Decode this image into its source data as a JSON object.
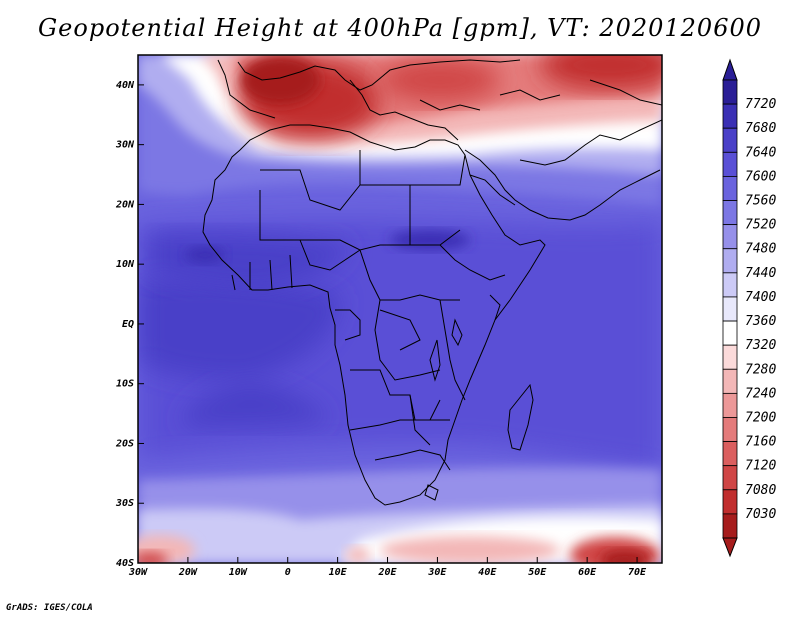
{
  "title": "Geopotential Height at 400hPa [gpm], VT: 2020120600",
  "credit": "GrADS: IGES/COLA",
  "map": {
    "lon_range": [
      -30,
      75
    ],
    "lat_range": [
      -40,
      45
    ],
    "lat_labels": [
      "40N",
      "30N",
      "20N",
      "10N",
      "EQ",
      "10S",
      "20S",
      "30S",
      "40S"
    ],
    "lat_values": [
      40,
      30,
      20,
      10,
      0,
      -10,
      -20,
      -30,
      -40
    ],
    "lon_labels": [
      "30W",
      "20W",
      "10W",
      "0",
      "10E",
      "20E",
      "30E",
      "40E",
      "50E",
      "60E",
      "70E"
    ],
    "lon_values": [
      -30,
      -20,
      -10,
      0,
      10,
      20,
      30,
      40,
      50,
      60,
      70
    ]
  },
  "colorbar": {
    "labels": [
      "7720",
      "7680",
      "7640",
      "7600",
      "7560",
      "7520",
      "7480",
      "7440",
      "7400",
      "7360",
      "7320",
      "7280",
      "7240",
      "7200",
      "7160",
      "7120",
      "7080",
      "7030"
    ],
    "colors": [
      "#2a1e96",
      "#3a2fb4",
      "#4a40c8",
      "#5a50d6",
      "#6a63de",
      "#7c77e4",
      "#9690ea",
      "#b0adf0",
      "#cccaf6",
      "#e8e8fb",
      "#ffffff",
      "#fbdada",
      "#f3b7b7",
      "#ec9898",
      "#e47b7b",
      "#db5f5f",
      "#d04646",
      "#c12e2e",
      "#a61c1c"
    ]
  }
}
